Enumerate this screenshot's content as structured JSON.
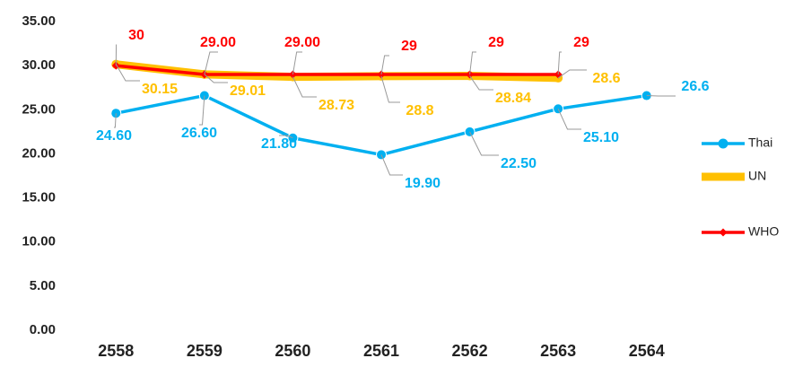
{
  "chart_data": {
    "type": "line",
    "categories": [
      "2558",
      "2559",
      "2560",
      "2561",
      "2562",
      "2563",
      "2564"
    ],
    "series": [
      {
        "name": "Thai",
        "color": "#00b0f0",
        "values": [
          24.6,
          26.6,
          21.8,
          19.9,
          22.5,
          25.1,
          26.6
        ],
        "value_labels": [
          "24.60",
          "26.60",
          "21.80",
          "19.90",
          "22.50",
          "25.10",
          "26.6"
        ]
      },
      {
        "name": "UN",
        "color": "#ffc000",
        "values": [
          30.15,
          29.01,
          28.73,
          28.8,
          28.84,
          28.6,
          null
        ],
        "value_labels": [
          "30.15",
          "29.01",
          "28.73",
          "28.8",
          "28.84",
          "28.6",
          null
        ]
      },
      {
        "name": "WHO",
        "color": "#ff0000",
        "values": [
          30,
          29,
          29,
          29,
          29,
          29,
          null
        ],
        "value_labels": [
          "30",
          "29.00",
          "29.00",
          "29",
          "29",
          "29",
          null
        ]
      }
    ],
    "ylim": [
      0,
      35
    ],
    "yticks": [
      {
        "value": 0,
        "label": "0.00"
      },
      {
        "value": 5,
        "label": "5.00"
      },
      {
        "value": 10,
        "label": "10.00"
      },
      {
        "value": 15,
        "label": "15.00"
      },
      {
        "value": 20,
        "label": "20.00"
      },
      {
        "value": 25,
        "label": "25.00"
      },
      {
        "value": 30,
        "label": "30.00"
      },
      {
        "value": 35,
        "label": "35.00"
      }
    ],
    "grid": false,
    "legend": "right"
  }
}
